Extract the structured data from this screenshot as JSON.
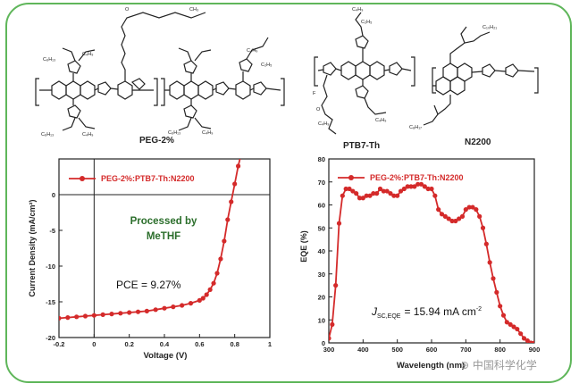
{
  "structures": {
    "labels": [
      "PEG-2%",
      "PTB7-Th",
      "N2200"
    ]
  },
  "chart_data": [
    {
      "type": "line",
      "legend": [
        "PEG-2%:PTB7-Th:N2200"
      ],
      "legend_position": "top-left",
      "xlabel": "Voltage (V)",
      "ylabel": "Current Density (mA/cm²)",
      "xlim": [
        -0.2,
        1.0
      ],
      "ylim": [
        -20,
        5
      ],
      "x_ticks": [
        -0.2,
        0,
        0.2,
        0.4,
        0.6,
        0.8,
        1.0
      ],
      "x_tick_labels": [
        "-0.2",
        "0",
        "0.2",
        "0.4",
        "0.6",
        "0.8",
        "1"
      ],
      "y_ticks": [
        -20,
        -15,
        -10,
        -5,
        0
      ],
      "y_tick_labels": [
        "-20",
        "-15",
        "-10",
        "-5",
        "0"
      ],
      "annotations": [
        "Processed by MeTHF",
        "PCE = 9.27%"
      ],
      "color": "#d42a2a",
      "annotation_color": "#2b6e2b",
      "series": [
        {
          "name": "PEG-2%:PTB7-Th:N2200",
          "x": [
            -0.2,
            -0.15,
            -0.1,
            -0.05,
            0,
            0.05,
            0.1,
            0.15,
            0.2,
            0.25,
            0.3,
            0.35,
            0.4,
            0.45,
            0.5,
            0.55,
            0.6,
            0.62,
            0.64,
            0.66,
            0.68,
            0.7,
            0.72,
            0.74,
            0.76,
            0.78,
            0.8,
            0.82,
            0.84,
            0.86
          ],
          "y": [
            -17.3,
            -17.2,
            -17.1,
            -17.0,
            -16.9,
            -16.8,
            -16.7,
            -16.6,
            -16.5,
            -16.4,
            -16.3,
            -16.1,
            -15.9,
            -15.7,
            -15.5,
            -15.2,
            -14.8,
            -14.5,
            -14.0,
            -13.3,
            -12.4,
            -11.0,
            -9.0,
            -6.5,
            -3.5,
            -1.0,
            1.5,
            4.0,
            6.0,
            8.0
          ]
        }
      ]
    },
    {
      "type": "line",
      "legend": [
        "PEG-2%:PTB7-Th:N2200"
      ],
      "legend_position": "top-left",
      "xlabel": "Wavelength (nm)",
      "ylabel": "EQE (%)",
      "xlim": [
        300,
        900
      ],
      "ylim": [
        0,
        80
      ],
      "x_ticks": [
        300,
        400,
        500,
        600,
        700,
        800,
        900
      ],
      "x_tick_labels": [
        "300",
        "400",
        "500",
        "600",
        "700",
        "800",
        "900"
      ],
      "y_ticks": [
        0,
        10,
        20,
        30,
        40,
        50,
        60,
        70,
        80
      ],
      "y_tick_labels": [
        "0",
        "10",
        "20",
        "30",
        "40",
        "50",
        "60",
        "70",
        "80"
      ],
      "annotations": [
        "J",
        "SC,EQE",
        "= 15.94 mA cm",
        "-2"
      ],
      "color": "#d42a2a",
      "series": [
        {
          "name": "PEG-2%:PTB7-Th:N2200",
          "x": [
            300,
            310,
            320,
            330,
            340,
            350,
            360,
            370,
            380,
            390,
            400,
            410,
            420,
            430,
            440,
            450,
            460,
            470,
            480,
            490,
            500,
            510,
            520,
            530,
            540,
            550,
            560,
            570,
            580,
            590,
            600,
            610,
            620,
            630,
            640,
            650,
            660,
            670,
            680,
            690,
            700,
            710,
            720,
            730,
            740,
            750,
            760,
            770,
            780,
            790,
            800,
            810,
            820,
            830,
            840,
            850,
            860,
            870,
            880,
            890,
            900
          ],
          "y": [
            2,
            8,
            25,
            52,
            64,
            67,
            67,
            66,
            65,
            63,
            63,
            64,
            64,
            65,
            65,
            67,
            66,
            66,
            65,
            64,
            64,
            66,
            67,
            68,
            68,
            68,
            69,
            69,
            68,
            67,
            67,
            64,
            58,
            56,
            55,
            54,
            53,
            53,
            54,
            55,
            58,
            59,
            59,
            58,
            55,
            50,
            43,
            35,
            28,
            22,
            16,
            12,
            9,
            8,
            7,
            6,
            4,
            2,
            1,
            0,
            0
          ]
        }
      ]
    }
  ]
}
